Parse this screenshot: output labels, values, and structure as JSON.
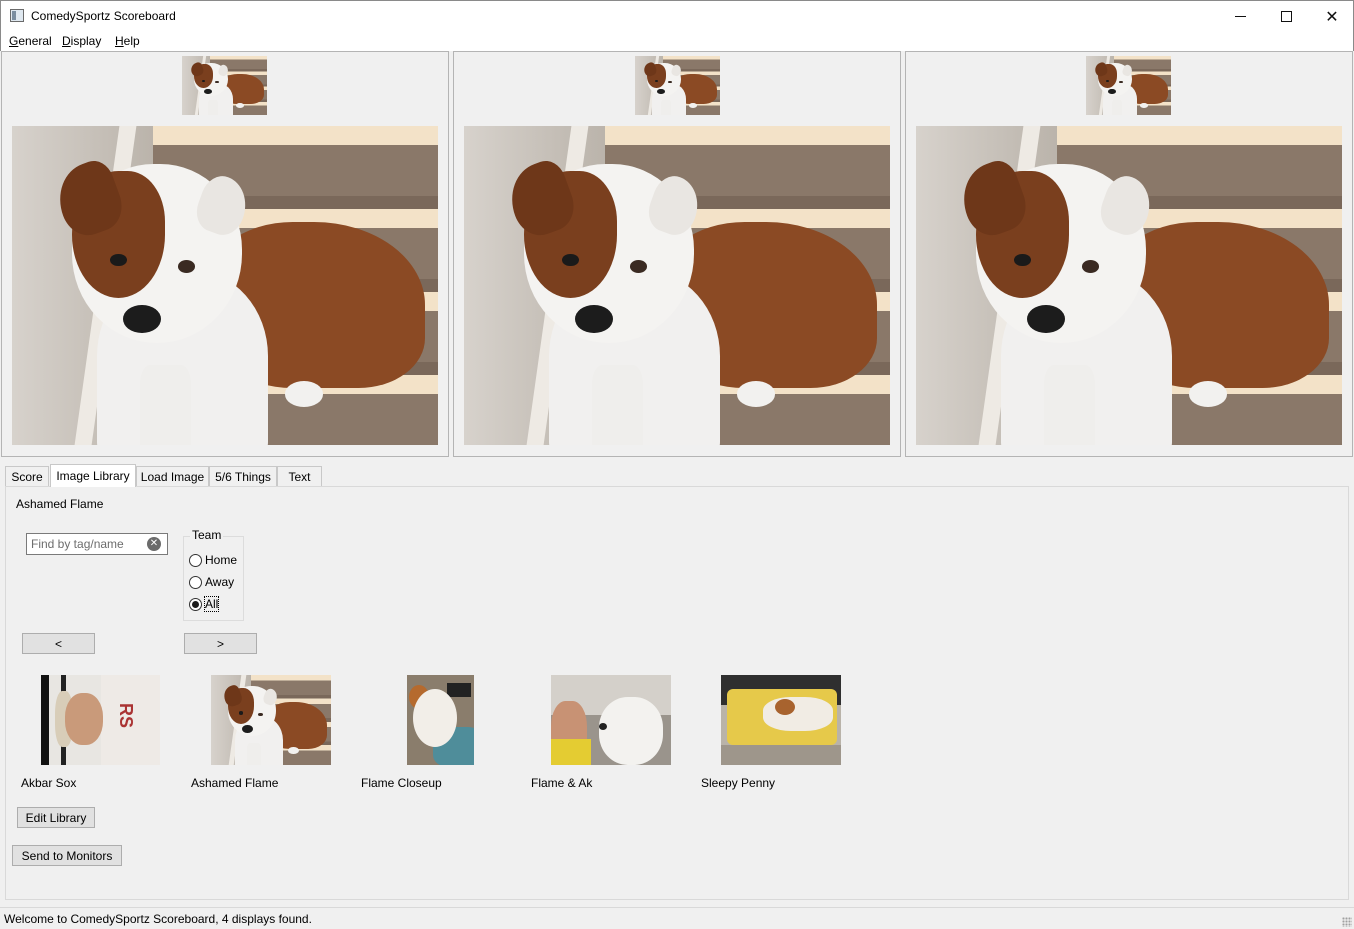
{
  "window": {
    "title": "ComedySportz Scoreboard",
    "controls": {
      "minimize": "minimize",
      "maximize": "maximize",
      "close": "✕"
    }
  },
  "menu": [
    {
      "label": "General",
      "accel": "G",
      "rest": "eneral"
    },
    {
      "label": "Display",
      "accel": "D",
      "rest": "isplay"
    },
    {
      "label": "Help",
      "accel": "H",
      "rest": "elp"
    }
  ],
  "displays": [
    {
      "name": "monitor-1"
    },
    {
      "name": "monitor-2"
    },
    {
      "name": "monitor-3"
    }
  ],
  "tabs": {
    "items": [
      "Score",
      "Image Library",
      "Load Image",
      "5/6 Things",
      "Text"
    ],
    "active": "Image Library"
  },
  "library": {
    "selected_name": "Ashamed Flame",
    "search": {
      "placeholder": "Find by tag/name",
      "value": ""
    },
    "team": {
      "title": "Team",
      "options": [
        "Home",
        "Away",
        "All"
      ],
      "selected": "All"
    },
    "prev_label": "<",
    "next_label": ">",
    "images": [
      {
        "label": "Akbar Sox"
      },
      {
        "label": "Ashamed Flame"
      },
      {
        "label": "Flame Closeup"
      },
      {
        "label": "Flame & Ak"
      },
      {
        "label": "Sleepy Penny"
      }
    ],
    "edit_label": "Edit Library",
    "send_label": "Send to Monitors"
  },
  "status": {
    "text": "Welcome to ComedySportz Scoreboard, 4 displays found."
  }
}
